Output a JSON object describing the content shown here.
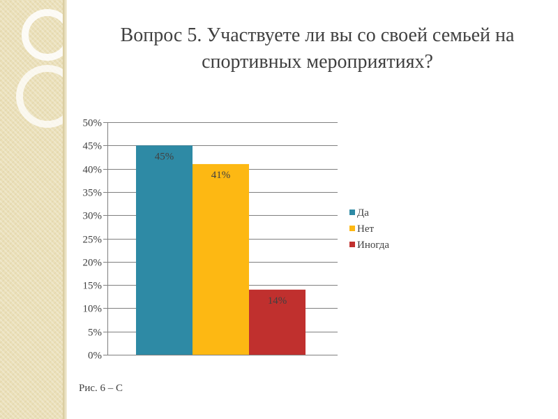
{
  "slide": {
    "title_line1": "Вопрос 5.  Участвуете ли вы со своей семьей на",
    "title_line2": "спортивных мероприятиях?",
    "caption_partial": "Рис. 6 – С"
  },
  "colors": {
    "yes": "#2e8aa5",
    "no": "#fdb813",
    "sometimes": "#c0302e",
    "grid": "#7f7f7f",
    "text": "#404040"
  },
  "chart_data": {
    "type": "bar",
    "title": "",
    "xlabel": "",
    "ylabel": "",
    "ylim": [
      0,
      50
    ],
    "ytick_step": 5,
    "ytick_suffix": "%",
    "grid": true,
    "legend_position": "right",
    "series": [
      {
        "name": "Да",
        "values": [
          45
        ],
        "label": "45%",
        "color": "#2e8aa5"
      },
      {
        "name": "Нет",
        "values": [
          41
        ],
        "label": "41%",
        "color": "#fdb813"
      },
      {
        "name": "Иногда",
        "values": [
          14
        ],
        "label": "14%",
        "color": "#c0302e"
      }
    ]
  }
}
